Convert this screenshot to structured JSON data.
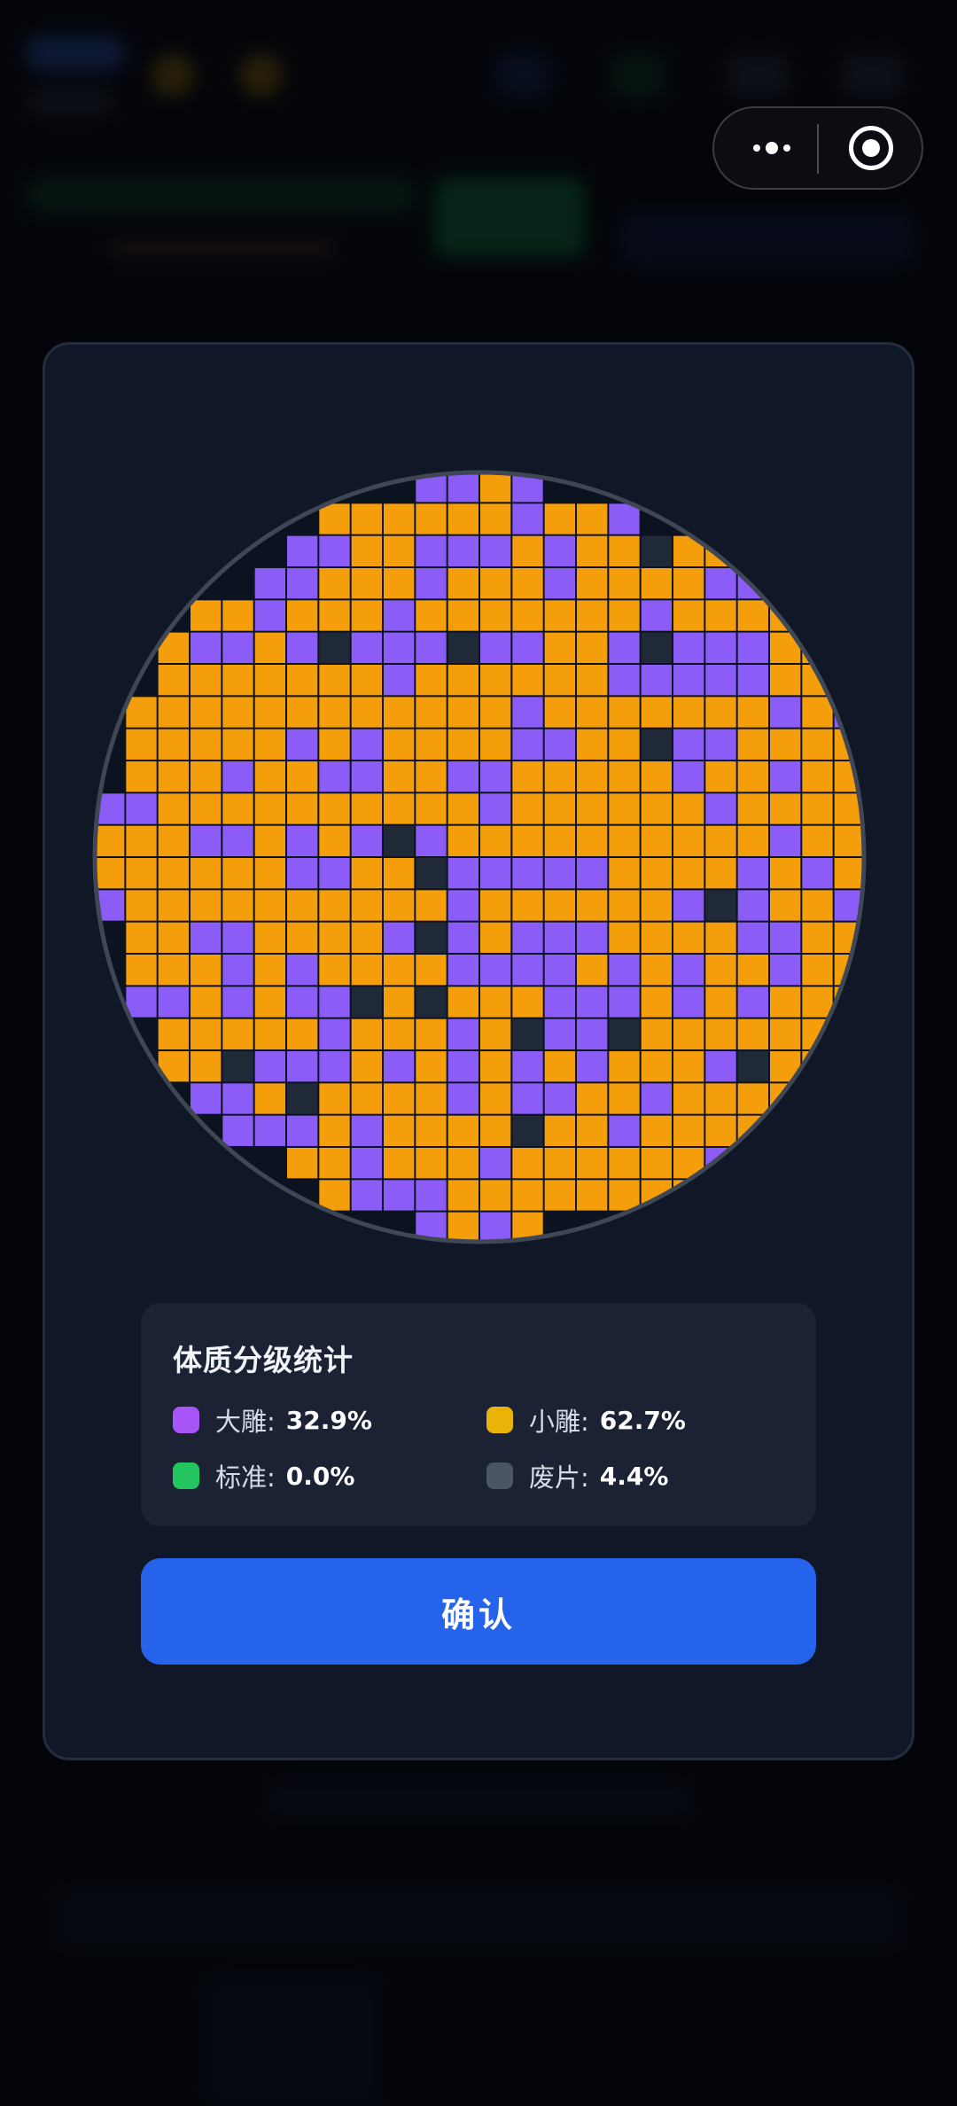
{
  "modal": {
    "stats": {
      "title": "体质分级统计",
      "items": [
        {
          "label": "大雕:",
          "value": "32.9%",
          "color": "#a855f7"
        },
        {
          "label": "小雕:",
          "value": "62.7%",
          "color": "#eab308"
        },
        {
          "label": "标准:",
          "value": "0.0%",
          "color": "#22c55e"
        },
        {
          "label": "废片:",
          "value": "4.4%",
          "color": "#4b5563"
        }
      ]
    },
    "confirm_label": "确认"
  },
  "wafer_map": {
    "diameter_cells": 24,
    "legend": {
      "P": {
        "grade": "大雕",
        "color": "#8b5cf6"
      },
      "O": {
        "grade": "小雕",
        "color": "#f59e0b"
      },
      "G": {
        "grade": "标准",
        "color": "#22c55e"
      },
      "D": {
        "grade": "废片",
        "color": "#1f2937"
      }
    },
    "rows": [
      "..........PPOP..........",
      ".......OOOOOOPOOP.......",
      "......PPOOPPPOPOODOO....",
      ".....PPOOOPOOOPOOOOPPP..",
      "...OOPOOOPOOOOOOOPOOOOO.",
      "..OPPOPDPPPDPPOOPDPPPOOP",
      "..OOOOOOOPOOOOOOPPPPPOO.",
      ".OOOOOOOOOOOOPOOOOOOOPOPO",
      ".OOOOOPOPOOOOPPOODPPOOOOP",
      ".OOOPOOPPOOPPOOOOOPOOPOOO",
      "PPOOOOOOOOOOPOOOOOOPOOOOP",
      "OOOPPOPOPDPOOOOOOOOOOPOOO",
      "OOOOOOPPOODPPPPPOOOOPOPOP",
      "POOOOOOOOOOPOOOOOOPDPOOPPD",
      ".OOPPOOOOPDPOPPPOOOOPPOOOO",
      ".OOOPOPOOOOPPPPOPOPOOPOOO",
      ".PPOPOPPDODOOOPPPOPOPOOOO",
      "..OOOOOPOOOPODPPDOOOOOOO.",
      "..OODPPPOPOPOPOPOOOPDOO..",
      "...PPODOOOOPOPPOOPOOOO...",
      "....PPPOPOOOODOOPOOOOP...",
      "......OOPOOOPOOOOOOPPP...",
      ".......OPPPOOOOOOOOO.....",
      "..........POPO..........."
    ]
  }
}
